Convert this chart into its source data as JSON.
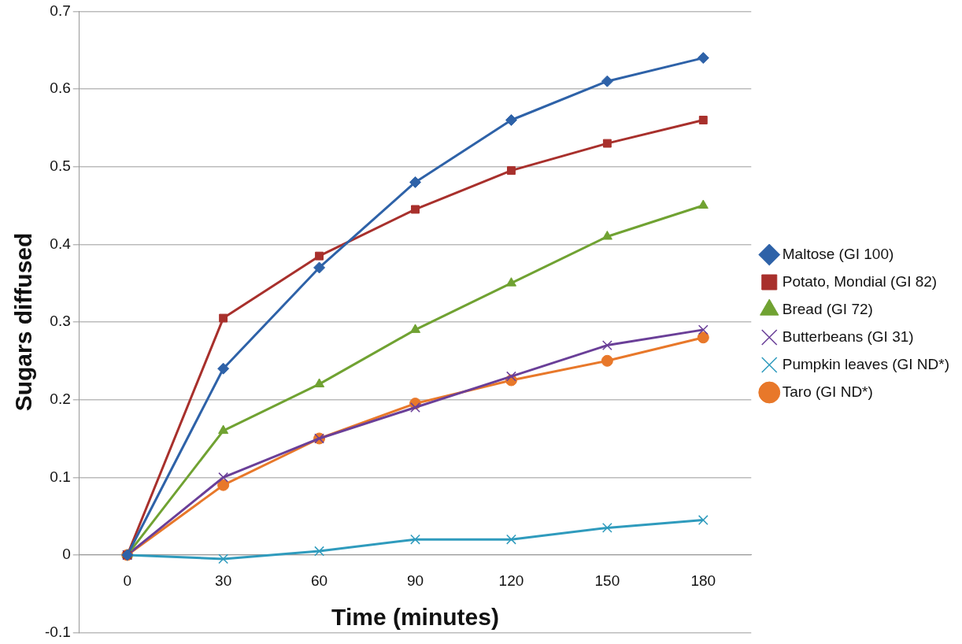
{
  "chart_data": {
    "type": "line",
    "xlabel": "Time (minutes)",
    "ylabel": "Sugars diffused",
    "categories": [
      "0",
      "30",
      "60",
      "90",
      "120",
      "150",
      "180"
    ],
    "ylim": [
      -0.1,
      0.7
    ],
    "yticks": [
      -0.1,
      0,
      0.1,
      0.2,
      0.3,
      0.4,
      0.5,
      0.6,
      0.7
    ],
    "grid": "y",
    "legend": "right",
    "line_style": "solid",
    "series": [
      {
        "name": "Maltose (GI 100)",
        "color": "#2e62a8",
        "marker": "diamond",
        "values": [
          0,
          0.24,
          0.37,
          0.48,
          0.56,
          0.61,
          0.64
        ]
      },
      {
        "name": "Potato, Mondial (GI 82)",
        "color": "#a8302c",
        "marker": "square",
        "values": [
          0,
          0.305,
          0.385,
          0.445,
          0.495,
          0.53,
          0.56
        ]
      },
      {
        "name": "Bread (GI 72)",
        "color": "#70a232",
        "marker": "triangle",
        "values": [
          0,
          0.16,
          0.22,
          0.29,
          0.35,
          0.41,
          0.45
        ]
      },
      {
        "name": "Butterbeans (GI 31)",
        "color": "#6a3f98",
        "marker": "cross",
        "values": [
          0,
          0.1,
          0.15,
          0.19,
          0.23,
          0.27,
          0.29
        ]
      },
      {
        "name": "Pumpkin leaves (GI ND*)",
        "color": "#2f9bbd",
        "marker": "cross",
        "values": [
          0,
          -0.005,
          0.005,
          0.02,
          0.02,
          0.035,
          0.045
        ]
      },
      {
        "name": "Taro (GI ND*)",
        "color": "#e8782a",
        "marker": "circle",
        "values": [
          0,
          0.09,
          0.15,
          0.195,
          0.225,
          0.25,
          0.28
        ]
      }
    ]
  }
}
